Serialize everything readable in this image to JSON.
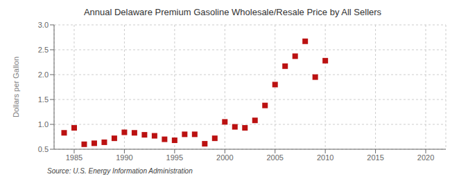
{
  "chart_data": {
    "type": "scatter",
    "title": "Annual Delaware Premium Gasoline Wholesale/Resale Price by All Sellers",
    "ylabel": "Dollars per Gallon",
    "annotations": [
      "Source: U.S. Energy Information Administration"
    ],
    "x": [
      1984,
      1985,
      1986,
      1987,
      1988,
      1989,
      1990,
      1991,
      1992,
      1993,
      1994,
      1995,
      1996,
      1997,
      1998,
      1999,
      2000,
      2001,
      2002,
      2003,
      2004,
      2005,
      2006,
      2007,
      2008,
      2009,
      2010
    ],
    "values": [
      0.83,
      0.93,
      0.6,
      0.62,
      0.64,
      0.72,
      0.84,
      0.83,
      0.79,
      0.77,
      0.7,
      0.68,
      0.8,
      0.8,
      0.61,
      0.72,
      1.05,
      0.95,
      0.93,
      1.08,
      1.38,
      1.8,
      2.17,
      2.37,
      2.67,
      1.95,
      2.28
    ],
    "color": "#bb1111",
    "marker": "square",
    "xlim": [
      1983,
      2022
    ],
    "ylim": [
      0.5,
      3.0
    ],
    "xticks": [
      1985,
      1990,
      1995,
      2000,
      2005,
      2010,
      2015,
      2020
    ],
    "yticks": [
      0.5,
      {
        "value": 1.0,
        "label": "1.0"
      },
      1.5,
      {
        "value": 2.0,
        "label": "2.0"
      },
      2.5,
      {
        "value": 3.0,
        "label": "3.0"
      }
    ],
    "grid": true
  }
}
